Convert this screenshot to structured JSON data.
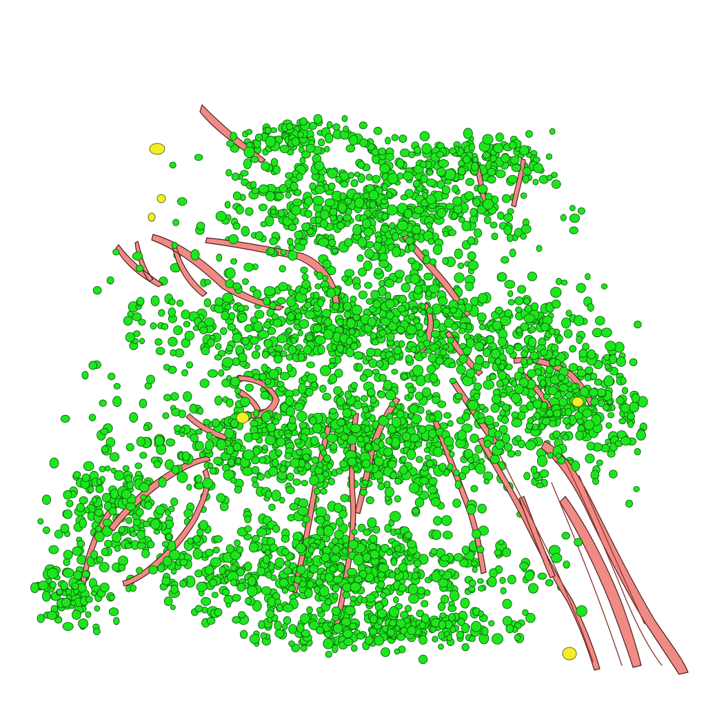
{
  "scene": {
    "background_color": "#ffffff",
    "cells": {
      "fill": "#1ee61e",
      "stroke": "#0b5e0b"
    },
    "markers": {
      "fill": "#f2ef2a",
      "stroke": "#6b6a10"
    },
    "vessels": {
      "fill": "#f08a84",
      "stroke": "#4a1c1a",
      "shade": "#8e3b37"
    }
  }
}
